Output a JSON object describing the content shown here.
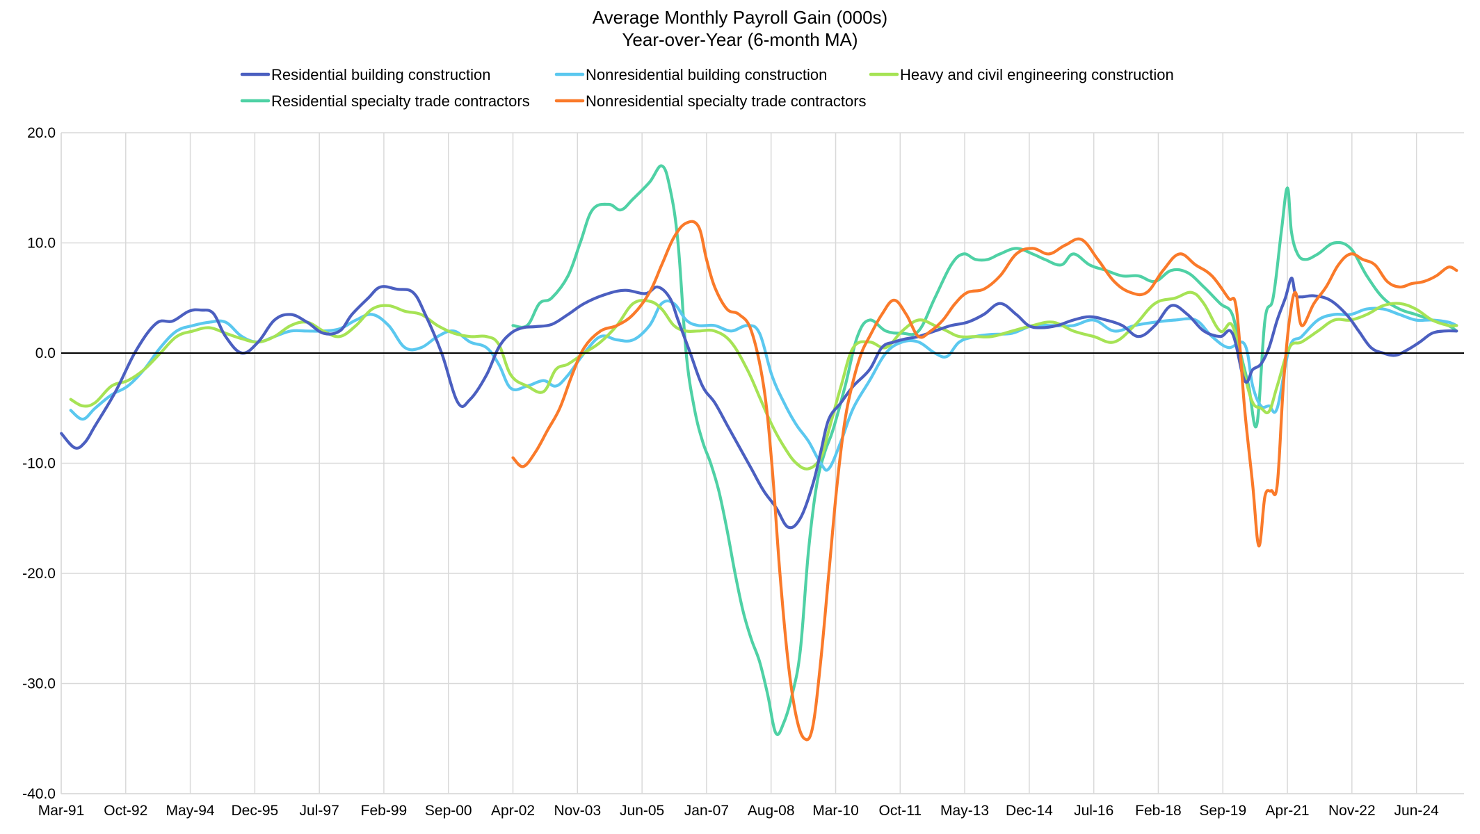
{
  "chart_data": {
    "type": "line",
    "title": "Average Monthly Payroll Gain (000s)",
    "subtitle": "Year-over-Year (6-month MA)",
    "xlabel": "",
    "ylabel": "",
    "ylim": [
      -40,
      20
    ],
    "yticks": [
      "20.0",
      "10.0",
      "0.0",
      "-10.0",
      "-20.0",
      "-30.0",
      "-40.0"
    ],
    "ytick_values": [
      20,
      10,
      0,
      -10,
      -20,
      -30,
      -40
    ],
    "xlim": [
      1991.167,
      2025.583
    ],
    "xticks": [
      "Mar-91",
      "Oct-92",
      "May-94",
      "Dec-95",
      "Jul-97",
      "Feb-99",
      "Sep-00",
      "Apr-02",
      "Nov-03",
      "Jun-05",
      "Jan-07",
      "Aug-08",
      "Mar-10",
      "Oct-11",
      "May-13",
      "Dec-14",
      "Jul-16",
      "Feb-18",
      "Sep-19",
      "Apr-21",
      "Nov-22",
      "Jun-24"
    ],
    "xtick_values": [
      1991.167,
      1992.75,
      1994.333,
      1995.917,
      1997.5,
      1999.083,
      2000.667,
      2002.25,
      2003.833,
      2005.417,
      2007.0,
      2008.583,
      2010.167,
      2011.75,
      2013.333,
      2014.917,
      2016.5,
      2018.083,
      2019.667,
      2021.25,
      2022.833,
      2024.417
    ],
    "grid": true,
    "legend_position": "top",
    "series": [
      {
        "name": "Residential building construction",
        "color": "#4b5fc0",
        "x": [
          1991.17,
          1991.5,
          1991.75,
          1992.0,
          1992.5,
          1993.0,
          1993.5,
          1993.9,
          1994.3,
          1994.6,
          1994.9,
          1995.2,
          1995.6,
          1996.0,
          1996.4,
          1996.8,
          1997.2,
          1997.6,
          1998.0,
          1998.3,
          1998.7,
          1999.0,
          1999.4,
          1999.8,
          2000.1,
          2000.5,
          2000.9,
          2001.2,
          2001.6,
          2001.9,
          2002.2,
          2002.5,
          2002.8,
          2003.2,
          2003.6,
          2004.0,
          2004.5,
          2005.0,
          2005.5,
          2005.8,
          2006.1,
          2006.3,
          2006.6,
          2006.9,
          2007.2,
          2007.5,
          2007.8,
          2008.1,
          2008.4,
          2008.7,
          2009.0,
          2009.3,
          2009.6,
          2009.8,
          2010.0,
          2010.3,
          2010.6,
          2011.0,
          2011.3,
          2011.6,
          2011.9,
          2012.2,
          2012.6,
          2013.0,
          2013.4,
          2013.8,
          2014.2,
          2014.6,
          2014.9,
          2015.2,
          2015.6,
          2016.0,
          2016.4,
          2016.8,
          2017.2,
          2017.6,
          2018.0,
          2018.4,
          2018.8,
          2019.2,
          2019.6,
          2019.9,
          2020.2,
          2020.4,
          2020.6,
          2020.8,
          2021.0,
          2021.2,
          2021.35,
          2021.45,
          2021.6,
          2021.9,
          2022.3,
          2022.7,
          2023.0,
          2023.3,
          2023.6,
          2023.9,
          2024.2,
          2024.5,
          2024.8,
          2025.1,
          2025.4
        ],
        "values": [
          -7.3,
          -8.6,
          -8.1,
          -6.6,
          -3.5,
          0.2,
          2.7,
          2.9,
          3.8,
          3.9,
          3.6,
          1.5,
          0.0,
          1.0,
          3.0,
          3.5,
          2.8,
          1.8,
          2.0,
          3.5,
          5.0,
          6.0,
          5.8,
          5.5,
          3.5,
          0.0,
          -4.5,
          -4.2,
          -2.0,
          0.5,
          1.8,
          2.3,
          2.4,
          2.6,
          3.5,
          4.5,
          5.3,
          5.7,
          5.4,
          6.0,
          5.0,
          3.0,
          0.0,
          -3.0,
          -4.5,
          -6.5,
          -8.5,
          -10.5,
          -12.5,
          -14.0,
          -15.8,
          -15.0,
          -12.0,
          -9.0,
          -6.0,
          -4.5,
          -3.0,
          -1.5,
          0.5,
          1.0,
          1.3,
          1.5,
          2.0,
          2.5,
          2.8,
          3.5,
          4.5,
          3.5,
          2.5,
          2.3,
          2.5,
          3.0,
          3.3,
          3.0,
          2.5,
          1.5,
          2.5,
          4.3,
          3.5,
          2.0,
          1.5,
          1.8,
          -2.5,
          -1.5,
          -1.0,
          0.5,
          3.0,
          5.0,
          6.8,
          5.3,
          5.1,
          5.2,
          4.8,
          3.5,
          2.0,
          0.5,
          0.0,
          -0.2,
          0.3,
          1.0,
          1.8,
          2.0,
          2.0
        ]
      },
      {
        "name": "Nonresidential building construction",
        "color": "#5bc8ef",
        "x": [
          1991.4,
          1991.7,
          1992.0,
          1992.4,
          1992.8,
          1993.2,
          1993.6,
          1994.0,
          1994.4,
          1994.8,
          1995.2,
          1995.6,
          1996.0,
          1996.4,
          1996.8,
          1997.2,
          1997.6,
          1998.0,
          1998.4,
          1998.8,
          1999.2,
          1999.6,
          2000.0,
          2000.4,
          2000.8,
          2001.2,
          2001.6,
          2001.9,
          2002.2,
          2002.6,
          2003.0,
          2003.3,
          2003.6,
          2004.0,
          2004.4,
          2004.8,
          2005.2,
          2005.6,
          2005.9,
          2006.2,
          2006.5,
          2006.8,
          2007.2,
          2007.6,
          2008.0,
          2008.3,
          2008.6,
          2008.9,
          2009.2,
          2009.5,
          2009.8,
          2010.0,
          2010.3,
          2010.6,
          2011.0,
          2011.4,
          2011.8,
          2012.2,
          2012.6,
          2012.9,
          2013.2,
          2013.6,
          2014.0,
          2014.5,
          2015.0,
          2015.5,
          2016.0,
          2016.5,
          2017.0,
          2017.5,
          2018.0,
          2018.5,
          2019.0,
          2019.4,
          2019.8,
          2020.2,
          2020.4,
          2020.6,
          2020.8,
          2021.0,
          2021.3,
          2021.6,
          2022.0,
          2022.4,
          2022.8,
          2023.2,
          2023.6,
          2024.0,
          2024.4,
          2024.8,
          2025.2,
          2025.4
        ],
        "values": [
          -5.2,
          -6.0,
          -5.0,
          -3.8,
          -3.0,
          -1.5,
          0.5,
          2.0,
          2.5,
          2.8,
          2.8,
          1.5,
          1.0,
          1.5,
          2.0,
          2.0,
          2.0,
          2.2,
          3.0,
          3.5,
          2.5,
          0.5,
          0.5,
          1.5,
          2.0,
          1.0,
          0.5,
          -1.0,
          -3.2,
          -3.0,
          -2.5,
          -3.0,
          -2.0,
          0.0,
          1.5,
          1.2,
          1.2,
          2.5,
          4.5,
          4.5,
          3.0,
          2.5,
          2.5,
          2.0,
          2.5,
          1.8,
          -2.0,
          -4.5,
          -6.5,
          -8.0,
          -10.0,
          -10.5,
          -8.0,
          -5.0,
          -2.5,
          0.0,
          1.0,
          1.0,
          0.0,
          -0.3,
          1.0,
          1.5,
          1.7,
          1.8,
          2.5,
          2.5,
          2.5,
          3.0,
          2.0,
          2.5,
          2.8,
          3.0,
          3.0,
          1.5,
          0.5,
          0.8,
          -3.0,
          -4.8,
          -4.8,
          -5.0,
          0.5,
          1.5,
          3.0,
          3.5,
          3.5,
          4.0,
          4.0,
          3.5,
          3.0,
          3.0,
          2.8,
          2.5
        ]
      },
      {
        "name": "Heavy and civil engineering construction",
        "color": "#a6e355",
        "x": [
          1991.4,
          1991.7,
          1992.0,
          1992.4,
          1992.8,
          1993.2,
          1993.6,
          1994.0,
          1994.4,
          1994.8,
          1995.2,
          1995.6,
          1996.0,
          1996.4,
          1996.8,
          1997.2,
          1997.6,
          1998.0,
          1998.4,
          1998.8,
          1999.2,
          1999.6,
          2000.0,
          2000.4,
          2000.8,
          2001.2,
          2001.6,
          2001.9,
          2002.2,
          2002.6,
          2003.0,
          2003.3,
          2003.6,
          2004.0,
          2004.4,
          2004.8,
          2005.2,
          2005.6,
          2005.9,
          2006.2,
          2006.5,
          2006.8,
          2007.2,
          2007.6,
          2008.0,
          2008.3,
          2008.6,
          2008.9,
          2009.2,
          2009.5,
          2009.8,
          2010.0,
          2010.3,
          2010.6,
          2011.0,
          2011.4,
          2011.8,
          2012.2,
          2012.6,
          2012.9,
          2013.2,
          2013.6,
          2014.0,
          2014.5,
          2015.0,
          2015.5,
          2016.0,
          2016.5,
          2017.0,
          2017.5,
          2018.0,
          2018.5,
          2018.9,
          2019.2,
          2019.6,
          2019.9,
          2020.2,
          2020.4,
          2020.6,
          2020.8,
          2021.0,
          2021.3,
          2021.6,
          2022.0,
          2022.4,
          2022.8,
          2023.2,
          2023.6,
          2024.0,
          2024.4,
          2024.8,
          2025.2,
          2025.4
        ],
        "values": [
          -4.2,
          -4.8,
          -4.5,
          -3.0,
          -2.5,
          -1.5,
          0.0,
          1.5,
          2.0,
          2.3,
          1.8,
          1.3,
          1.0,
          1.5,
          2.5,
          2.8,
          2.0,
          1.5,
          2.5,
          4.0,
          4.3,
          3.8,
          3.5,
          2.5,
          1.8,
          1.5,
          1.5,
          0.8,
          -2.0,
          -3.0,
          -3.5,
          -1.5,
          -1.0,
          0.0,
          1.0,
          2.5,
          4.5,
          4.7,
          4.0,
          2.5,
          2.0,
          2.0,
          2.0,
          1.0,
          -1.5,
          -4.0,
          -6.5,
          -8.5,
          -10.0,
          -10.5,
          -9.5,
          -7.0,
          -3.0,
          0.5,
          1.0,
          0.5,
          2.0,
          3.0,
          2.5,
          2.0,
          1.5,
          1.5,
          1.5,
          2.0,
          2.5,
          2.8,
          2.0,
          1.5,
          1.0,
          2.5,
          4.5,
          5.0,
          5.5,
          4.5,
          2.0,
          2.5,
          -2.0,
          -4.5,
          -5.0,
          -5.3,
          -3.0,
          0.5,
          1.0,
          2.0,
          3.0,
          3.0,
          3.5,
          4.3,
          4.5,
          4.0,
          3.0,
          2.5,
          2.5
        ]
      },
      {
        "name": "Residential specialty trade contractors",
        "color": "#4fd1a5",
        "x": [
          2002.25,
          2002.6,
          2002.9,
          2003.2,
          2003.6,
          2003.9,
          2004.2,
          2004.6,
          2004.9,
          2005.2,
          2005.6,
          2005.9,
          2006.1,
          2006.3,
          2006.5,
          2006.7,
          2006.9,
          2007.1,
          2007.3,
          2007.5,
          2007.7,
          2007.9,
          2008.1,
          2008.3,
          2008.5,
          2008.7,
          2008.9,
          2009.1,
          2009.3,
          2009.5,
          2009.7,
          2009.9,
          2010.1,
          2010.4,
          2010.7,
          2011.0,
          2011.4,
          2011.8,
          2012.2,
          2012.6,
          2013.0,
          2013.3,
          2013.6,
          2013.9,
          2014.2,
          2014.6,
          2015.0,
          2015.3,
          2015.7,
          2016.0,
          2016.4,
          2016.8,
          2017.2,
          2017.6,
          2018.0,
          2018.4,
          2018.8,
          2019.2,
          2019.6,
          2019.9,
          2020.1,
          2020.3,
          2020.5,
          2020.7,
          2020.9,
          2021.1,
          2021.25,
          2021.35,
          2021.5,
          2021.7,
          2022.0,
          2022.4,
          2022.8,
          2023.2,
          2023.6,
          2024.0,
          2024.4,
          2024.8,
          2025.2,
          2025.4
        ],
        "values": [
          2.5,
          2.5,
          4.5,
          5.0,
          7.0,
          10.0,
          13.0,
          13.5,
          13.0,
          14.0,
          15.5,
          17.0,
          15.0,
          10.0,
          0.0,
          -5.0,
          -8.0,
          -10.0,
          -12.5,
          -16.0,
          -20.0,
          -23.5,
          -26.0,
          -28.0,
          -31.0,
          -34.5,
          -33.5,
          -31.0,
          -27.0,
          -18.0,
          -12.0,
          -9.0,
          -7.0,
          -3.0,
          1.5,
          3.0,
          2.0,
          1.8,
          2.0,
          5.0,
          8.0,
          9.0,
          8.5,
          8.5,
          9.0,
          9.5,
          9.0,
          8.5,
          8.0,
          9.0,
          8.0,
          7.5,
          7.0,
          7.0,
          6.5,
          7.5,
          7.3,
          6.0,
          4.5,
          3.5,
          0.0,
          -3.0,
          -6.5,
          3.0,
          5.0,
          11.0,
          15.0,
          11.0,
          9.0,
          8.5,
          9.0,
          10.0,
          9.5,
          7.0,
          5.0,
          4.0,
          3.5,
          3.0,
          2.5,
          2.0
        ]
      },
      {
        "name": "Nonresidential specialty trade contractors",
        "color": "#fa7a2a",
        "x": [
          2002.25,
          2002.5,
          2002.8,
          2003.1,
          2003.4,
          2003.7,
          2004.0,
          2004.4,
          2004.8,
          2005.2,
          2005.6,
          2005.9,
          2006.2,
          2006.5,
          2006.8,
          2007.0,
          2007.2,
          2007.5,
          2007.8,
          2008.1,
          2008.4,
          2008.6,
          2008.8,
          2009.0,
          2009.2,
          2009.4,
          2009.6,
          2009.8,
          2010.0,
          2010.2,
          2010.4,
          2010.6,
          2010.8,
          2011.0,
          2011.3,
          2011.6,
          2011.9,
          2012.2,
          2012.5,
          2012.8,
          2013.1,
          2013.4,
          2013.8,
          2014.2,
          2014.6,
          2015.0,
          2015.4,
          2015.8,
          2016.2,
          2016.6,
          2017.0,
          2017.4,
          2017.8,
          2018.2,
          2018.6,
          2019.0,
          2019.4,
          2019.8,
          2020.0,
          2020.2,
          2020.4,
          2020.55,
          2020.7,
          2020.85,
          2021.0,
          2021.15,
          2021.3,
          2021.45,
          2021.6,
          2021.9,
          2022.2,
          2022.5,
          2022.8,
          2023.1,
          2023.4,
          2023.7,
          2024.0,
          2024.3,
          2024.6,
          2024.9,
          2025.2,
          2025.4
        ],
        "values": [
          -9.5,
          -10.3,
          -9.0,
          -7.0,
          -5.0,
          -2.0,
          0.5,
          2.0,
          2.5,
          3.5,
          5.5,
          8.0,
          10.5,
          11.8,
          11.5,
          8.5,
          6.0,
          4.0,
          3.5,
          2.0,
          -3.0,
          -10.0,
          -20.0,
          -28.0,
          -33.0,
          -35.0,
          -34.0,
          -28.0,
          -20.0,
          -12.0,
          -6.0,
          -2.5,
          0.0,
          1.5,
          3.5,
          4.8,
          3.5,
          1.5,
          2.0,
          3.0,
          4.5,
          5.5,
          5.8,
          7.0,
          9.0,
          9.5,
          9.0,
          9.8,
          10.3,
          8.5,
          6.5,
          5.5,
          5.5,
          7.5,
          9.0,
          8.0,
          7.0,
          5.0,
          4.0,
          -5.0,
          -12.0,
          -17.5,
          -13.0,
          -12.5,
          -12.0,
          -3.0,
          3.0,
          5.5,
          2.5,
          4.5,
          6.0,
          8.0,
          9.0,
          8.5,
          8.0,
          6.5,
          6.0,
          6.3,
          6.5,
          7.0,
          7.8,
          7.5
        ]
      }
    ]
  }
}
